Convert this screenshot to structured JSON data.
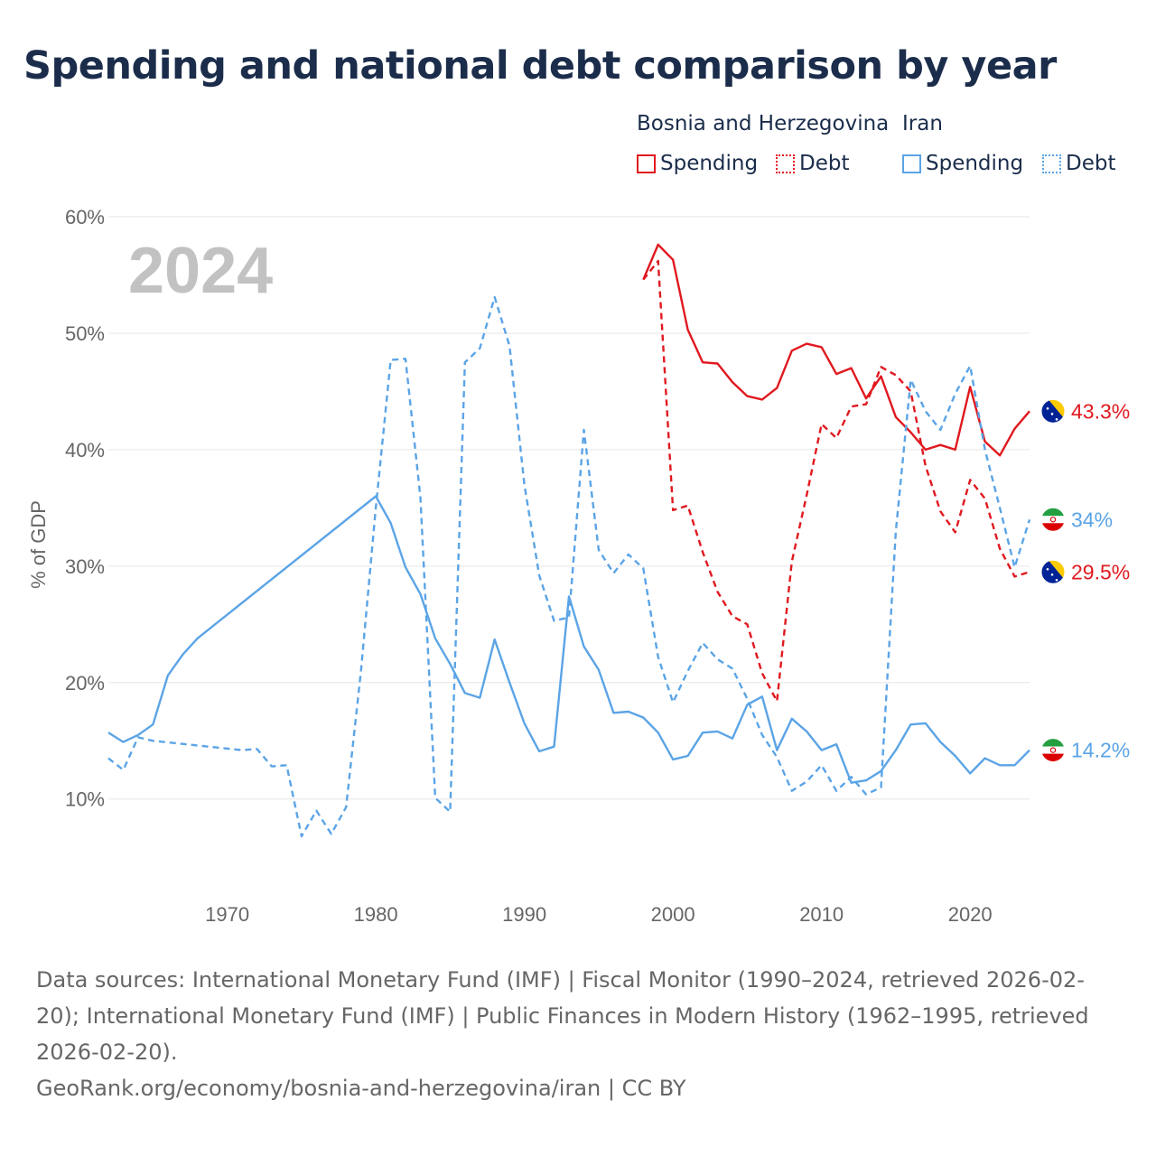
{
  "title": "Spending and national debt comparison by year",
  "legend": {
    "groups": [
      {
        "country": "Bosnia and Herzegovina",
        "color": "#e0191f",
        "items": [
          {
            "label": "Spending",
            "style": "solid"
          },
          {
            "label": "Debt",
            "style": "dotted"
          }
        ]
      },
      {
        "country": "Iran",
        "color": "#5ba4e6",
        "items": [
          {
            "label": "Spending",
            "style": "solid"
          },
          {
            "label": "Debt",
            "style": "dotted"
          }
        ]
      }
    ]
  },
  "chart_data": {
    "type": "line",
    "year_label": "2024",
    "ylabel": "% of GDP",
    "xlabel": "",
    "xlim": [
      1962,
      2024
    ],
    "ylim": [
      3,
      60
    ],
    "x_ticks": [
      1970,
      1980,
      1990,
      2000,
      2010,
      2020
    ],
    "y_ticks": [
      10,
      20,
      30,
      40,
      50,
      60
    ],
    "y_tick_labels": [
      "10%",
      "20%",
      "30%",
      "40%",
      "50%",
      "60%"
    ],
    "grid": true,
    "series": [
      {
        "name": "Bosnia and Herzegovina Spending",
        "country": "Bosnia and Herzegovina",
        "measure": "Spending",
        "color": "#e0191f",
        "dash": "solid",
        "flag": "bosnia-flag-icon",
        "end_label": "43.3%",
        "points": [
          [
            1998,
            54.6
          ],
          [
            1999,
            57.6
          ],
          [
            2000,
            56.3
          ],
          [
            2001,
            50.3
          ],
          [
            2002,
            47.5
          ],
          [
            2003,
            47.4
          ],
          [
            2004,
            45.8
          ],
          [
            2005,
            44.6
          ],
          [
            2006,
            44.3
          ],
          [
            2007,
            45.3
          ],
          [
            2008,
            48.5
          ],
          [
            2009,
            49.1
          ],
          [
            2010,
            48.8
          ],
          [
            2011,
            46.5
          ],
          [
            2012,
            47.0
          ],
          [
            2013,
            44.4
          ],
          [
            2014,
            46.3
          ],
          [
            2015,
            42.8
          ],
          [
            2016,
            41.5
          ],
          [
            2017,
            40.0
          ],
          [
            2018,
            40.4
          ],
          [
            2019,
            40.0
          ],
          [
            2020,
            45.4
          ],
          [
            2021,
            40.7
          ],
          [
            2022,
            39.5
          ],
          [
            2023,
            41.8
          ],
          [
            2024,
            43.3
          ]
        ]
      },
      {
        "name": "Bosnia and Herzegovina Debt",
        "country": "Bosnia and Herzegovina",
        "measure": "Debt",
        "color": "#e0191f",
        "dash": "dashed",
        "flag": "bosnia-flag-icon",
        "end_label": "29.5%",
        "points": [
          [
            1998,
            54.6
          ],
          [
            1999,
            56.2
          ],
          [
            2000,
            34.8
          ],
          [
            2001,
            35.2
          ],
          [
            2002,
            31.2
          ],
          [
            2003,
            27.8
          ],
          [
            2004,
            25.7
          ],
          [
            2005,
            25.0
          ],
          [
            2006,
            20.8
          ],
          [
            2007,
            18.4
          ],
          [
            2008,
            30.4
          ],
          [
            2009,
            36.1
          ],
          [
            2010,
            42.2
          ],
          [
            2011,
            41.0
          ],
          [
            2012,
            43.7
          ],
          [
            2013,
            43.9
          ],
          [
            2014,
            47.1
          ],
          [
            2015,
            46.4
          ],
          [
            2016,
            45.0
          ],
          [
            2017,
            38.6
          ],
          [
            2018,
            34.7
          ],
          [
            2019,
            32.9
          ],
          [
            2020,
            37.4
          ],
          [
            2021,
            35.8
          ],
          [
            2022,
            31.5
          ],
          [
            2023,
            29.1
          ],
          [
            2024,
            29.5
          ]
        ]
      },
      {
        "name": "Iran Spending",
        "country": "Iran",
        "measure": "Spending",
        "color": "#5ba4e6",
        "dash": "solid",
        "flag": "iran-flag-icon",
        "end_label": "14.2%",
        "points": [
          [
            1962,
            15.7
          ],
          [
            1963,
            14.9
          ],
          [
            1964,
            15.5
          ],
          [
            1965,
            16.4
          ],
          [
            1966,
            20.6
          ],
          [
            1967,
            22.4
          ],
          [
            1968,
            23.8
          ],
          [
            1980,
            36.0
          ],
          [
            1981,
            33.7
          ],
          [
            1982,
            29.9
          ],
          [
            1983,
            27.6
          ],
          [
            1984,
            23.8
          ],
          [
            1985,
            21.6
          ],
          [
            1986,
            19.1
          ],
          [
            1987,
            18.7
          ],
          [
            1988,
            23.7
          ],
          [
            1989,
            20.0
          ],
          [
            1990,
            16.5
          ],
          [
            1991,
            14.1
          ],
          [
            1992,
            14.5
          ],
          [
            1993,
            27.4
          ],
          [
            1994,
            23.1
          ],
          [
            1995,
            21.1
          ],
          [
            1996,
            17.4
          ],
          [
            1997,
            17.5
          ],
          [
            1998,
            17.0
          ],
          [
            1999,
            15.7
          ],
          [
            2000,
            13.4
          ],
          [
            2001,
            13.7
          ],
          [
            2002,
            15.7
          ],
          [
            2003,
            15.8
          ],
          [
            2004,
            15.2
          ],
          [
            2005,
            18.1
          ],
          [
            2006,
            18.8
          ],
          [
            2007,
            14.2
          ],
          [
            2008,
            16.9
          ],
          [
            2009,
            15.8
          ],
          [
            2010,
            14.2
          ],
          [
            2011,
            14.7
          ],
          [
            2012,
            11.4
          ],
          [
            2013,
            11.6
          ],
          [
            2014,
            12.4
          ],
          [
            2015,
            14.2
          ],
          [
            2016,
            16.4
          ],
          [
            2017,
            16.5
          ],
          [
            2018,
            14.9
          ],
          [
            2019,
            13.7
          ],
          [
            2020,
            12.2
          ],
          [
            2021,
            13.5
          ],
          [
            2022,
            12.9
          ],
          [
            2023,
            12.9
          ],
          [
            2024,
            14.2
          ]
        ]
      },
      {
        "name": "Iran Debt",
        "country": "Iran",
        "measure": "Debt",
        "color": "#5ba4e6",
        "dash": "dashed",
        "flag": "iran-flag-icon",
        "end_label": "34%",
        "points": [
          [
            1962,
            13.5
          ],
          [
            1963,
            12.5
          ],
          [
            1964,
            15.3
          ],
          [
            1965,
            15.0
          ],
          [
            1971,
            14.2
          ],
          [
            1972,
            14.3
          ],
          [
            1973,
            12.8
          ],
          [
            1974,
            12.9
          ],
          [
            1975,
            6.8
          ],
          [
            1976,
            9.0
          ],
          [
            1977,
            7.0
          ],
          [
            1978,
            9.3
          ],
          [
            1979,
            21.0
          ],
          [
            1980,
            35.0
          ],
          [
            1981,
            47.7
          ],
          [
            1982,
            47.8
          ],
          [
            1983,
            35.9
          ],
          [
            1984,
            10.1
          ],
          [
            1985,
            8.9
          ],
          [
            1986,
            47.5
          ],
          [
            1987,
            48.7
          ],
          [
            1988,
            53.1
          ],
          [
            1989,
            48.9
          ],
          [
            1990,
            37.0
          ],
          [
            1991,
            29.2
          ],
          [
            1992,
            25.3
          ],
          [
            1993,
            25.6
          ],
          [
            1994,
            41.7
          ],
          [
            1995,
            31.4
          ],
          [
            1996,
            29.4
          ],
          [
            1997,
            31.0
          ],
          [
            1998,
            29.8
          ],
          [
            1999,
            22.2
          ],
          [
            2000,
            18.3
          ],
          [
            2001,
            21.0
          ],
          [
            2002,
            23.4
          ],
          [
            2003,
            22.0
          ],
          [
            2004,
            21.2
          ],
          [
            2005,
            18.6
          ],
          [
            2006,
            15.5
          ],
          [
            2007,
            13.6
          ],
          [
            2008,
            10.7
          ],
          [
            2009,
            11.5
          ],
          [
            2010,
            12.9
          ],
          [
            2011,
            10.7
          ],
          [
            2012,
            11.9
          ],
          [
            2013,
            10.4
          ],
          [
            2014,
            11.0
          ],
          [
            2015,
            33.0
          ],
          [
            2016,
            46.0
          ],
          [
            2017,
            43.3
          ],
          [
            2018,
            41.7
          ],
          [
            2019,
            44.8
          ],
          [
            2020,
            47.2
          ],
          [
            2021,
            40.0
          ],
          [
            2022,
            35.0
          ],
          [
            2023,
            29.9
          ],
          [
            2024,
            34.0
          ]
        ]
      }
    ]
  },
  "sources": {
    "line1": "Data sources: International Monetary Fund (IMF) | Fiscal Monitor (1990–2024, retrieved 2026-02-20); International Monetary Fund (IMF) | Public Finances in Modern History (1962–1995, retrieved 2026-02-20).",
    "line2": "GeoRank.org/economy/bosnia-and-herzegovina/iran | CC BY"
  }
}
